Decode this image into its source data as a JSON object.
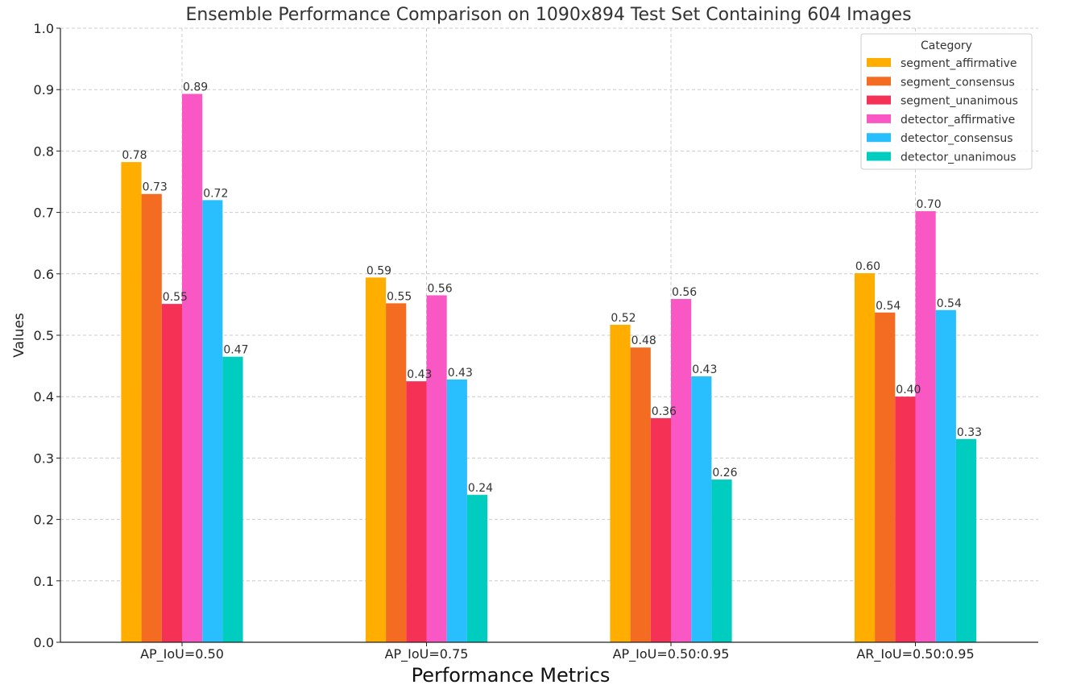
{
  "chart_data": {
    "type": "bar",
    "title": "Ensemble Performance Comparison on 1090x894 Test Set Containing 604 Images",
    "xlabel": "Performance Metrics",
    "ylabel": "Values",
    "ylim": [
      0,
      1.0
    ],
    "yticks": [
      "0.0",
      "0.1",
      "0.2",
      "0.3",
      "0.4",
      "0.5",
      "0.6",
      "0.7",
      "0.8",
      "0.9",
      "1.0"
    ],
    "categories": [
      "AP_IoU=0.50",
      "AP_IoU=0.75",
      "AP_IoU=0.50:0.95",
      "AR_IoU=0.50:0.95"
    ],
    "grid": true,
    "legend": {
      "title": "Category",
      "position": "top-right"
    },
    "series": [
      {
        "name": "segment_affirmative",
        "color": "#FFAE00",
        "values": [
          0.782,
          0.594,
          0.517,
          0.601
        ],
        "labels": [
          "0.78",
          "0.59",
          "0.52",
          "0.60"
        ]
      },
      {
        "name": "segment_consensus",
        "color": "#F46B22",
        "values": [
          0.73,
          0.552,
          0.48,
          0.537
        ],
        "labels": [
          "0.73",
          "0.55",
          "0.48",
          "0.54"
        ]
      },
      {
        "name": "segment_unanimous",
        "color": "#F53156",
        "values": [
          0.551,
          0.425,
          0.365,
          0.4
        ],
        "labels": [
          "0.55",
          "0.43",
          "0.36",
          "0.40"
        ]
      },
      {
        "name": "detector_affirmative",
        "color": "#F957C3",
        "values": [
          0.893,
          0.565,
          0.559,
          0.702
        ],
        "labels": [
          "0.89",
          "0.56",
          "0.56",
          "0.70"
        ]
      },
      {
        "name": "detector_consensus",
        "color": "#29BEFD",
        "values": [
          0.72,
          0.428,
          0.433,
          0.541
        ],
        "labels": [
          "0.72",
          "0.43",
          "0.43",
          "0.54"
        ]
      },
      {
        "name": "detector_unanimous",
        "color": "#00CCBF",
        "values": [
          0.465,
          0.24,
          0.265,
          0.331
        ],
        "labels": [
          "0.47",
          "0.24",
          "0.26",
          "0.33"
        ]
      }
    ]
  }
}
